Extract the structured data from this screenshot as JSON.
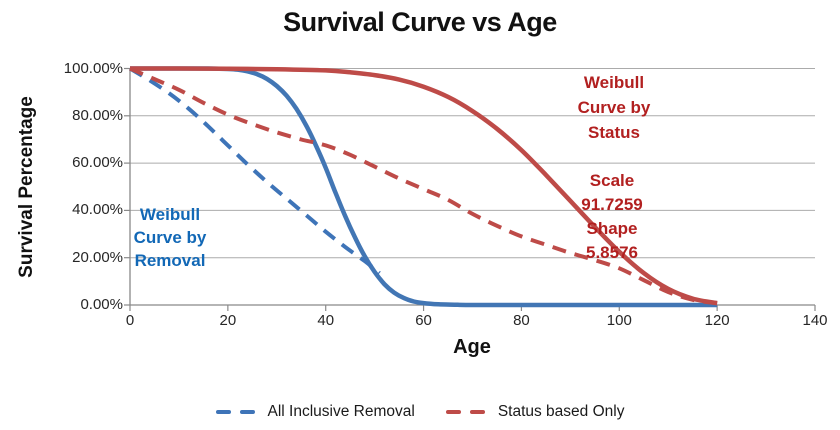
{
  "chart_data": {
    "type": "line",
    "title": "Survival Curve vs Age",
    "xlabel": "Age",
    "ylabel": "Survival Percentage",
    "xlim": [
      0,
      140
    ],
    "ylim": [
      0,
      100
    ],
    "x_ticks": [
      0,
      20,
      40,
      60,
      80,
      100,
      120,
      140
    ],
    "x_tick_labels": [
      "0",
      "20",
      "40",
      "60",
      "80",
      "100",
      "120",
      "140"
    ],
    "y_ticks": [
      0,
      20,
      40,
      60,
      80,
      100
    ],
    "y_tick_labels": [
      "0.00%",
      "20.00%",
      "40.00%",
      "60.00%",
      "80.00%",
      "100.00%"
    ],
    "grid": "horizontal",
    "grid_color": "#ababab",
    "axis_color": "#898989",
    "legend_position": "bottom",
    "series": [
      {
        "name": "Weibull Curve by Removal",
        "color": "#4276b4",
        "line": "solid",
        "x": [
          0,
          6,
          12,
          16,
          20,
          22,
          24,
          26,
          28,
          30,
          32,
          34,
          36,
          38,
          40,
          42,
          44,
          46,
          48,
          50,
          52,
          54,
          56,
          58,
          60,
          63,
          67,
          72,
          80,
          90,
          100,
          110,
          120
        ],
        "y": [
          100,
          100,
          100,
          100,
          99.8,
          99.5,
          98.8,
          97.6,
          95.6,
          92.6,
          88.5,
          83,
          76,
          67.5,
          58,
          47.5,
          37.5,
          28.5,
          20.5,
          14,
          8.8,
          5.2,
          2.9,
          1.5,
          0.8,
          0.3,
          0.1,
          0,
          0,
          0,
          0,
          0,
          0
        ]
      },
      {
        "name": "All Inclusive Removal",
        "color": "#3e74b8",
        "line": "dashed",
        "x": [
          0,
          4,
          8,
          12,
          16,
          20,
          24,
          28,
          32,
          36,
          40,
          44,
          48,
          51
        ],
        "y": [
          100,
          95,
          89.5,
          83,
          75.5,
          67.5,
          59.5,
          52,
          45,
          38,
          31,
          24.5,
          18.5,
          13.5
        ]
      },
      {
        "name": "Weibull Curve by Status",
        "color": "#be4b48",
        "line": "solid",
        "weibull_scale": "91.7259",
        "weibull_shape": "5.8576",
        "x": [
          0,
          10,
          20,
          30,
          40,
          45,
          50,
          55,
          60,
          65,
          70,
          75,
          80,
          85,
          90,
          95,
          100,
          105,
          110,
          115,
          120
        ],
        "y": [
          100,
          100,
          99.9,
          99.7,
          99.2,
          98.4,
          97.2,
          95.3,
          92.3,
          88,
          82,
          74.5,
          65.5,
          55,
          44,
          33,
          22.5,
          13.5,
          6.8,
          2.7,
          0.8
        ]
      },
      {
        "name": "Status based Only",
        "color": "#be4b48",
        "line": "dashed",
        "x": [
          0,
          5,
          10,
          15,
          20,
          25,
          30,
          35,
          40,
          45,
          50,
          55,
          60,
          65,
          70,
          75,
          80,
          85,
          90,
          95,
          100,
          105,
          110,
          115,
          120
        ],
        "y": [
          100,
          95.5,
          91,
          85.5,
          80.5,
          76.5,
          73,
          70,
          67.5,
          63.5,
          58.5,
          53.5,
          49,
          44.5,
          38.5,
          33.5,
          29,
          25.5,
          22,
          19,
          15.5,
          10.5,
          5.5,
          2.2,
          0.7
        ]
      }
    ],
    "annotations": [
      {
        "id": "removal",
        "color": "#1268b6",
        "lines": [
          "Weibull",
          "Curve by",
          "Removal"
        ]
      },
      {
        "id": "status",
        "color": "#b22020",
        "lines": [
          "Weibull",
          "Curve by",
          "Status"
        ]
      },
      {
        "id": "params",
        "color": "#b22020",
        "lines": [
          "Scale",
          "91.7259",
          "Shape",
          "5.8576"
        ]
      }
    ],
    "legend": [
      {
        "label": "All Inclusive Removal",
        "color": "#3e74b8"
      },
      {
        "label": "Status based Only",
        "color": "#be4b48"
      }
    ]
  }
}
